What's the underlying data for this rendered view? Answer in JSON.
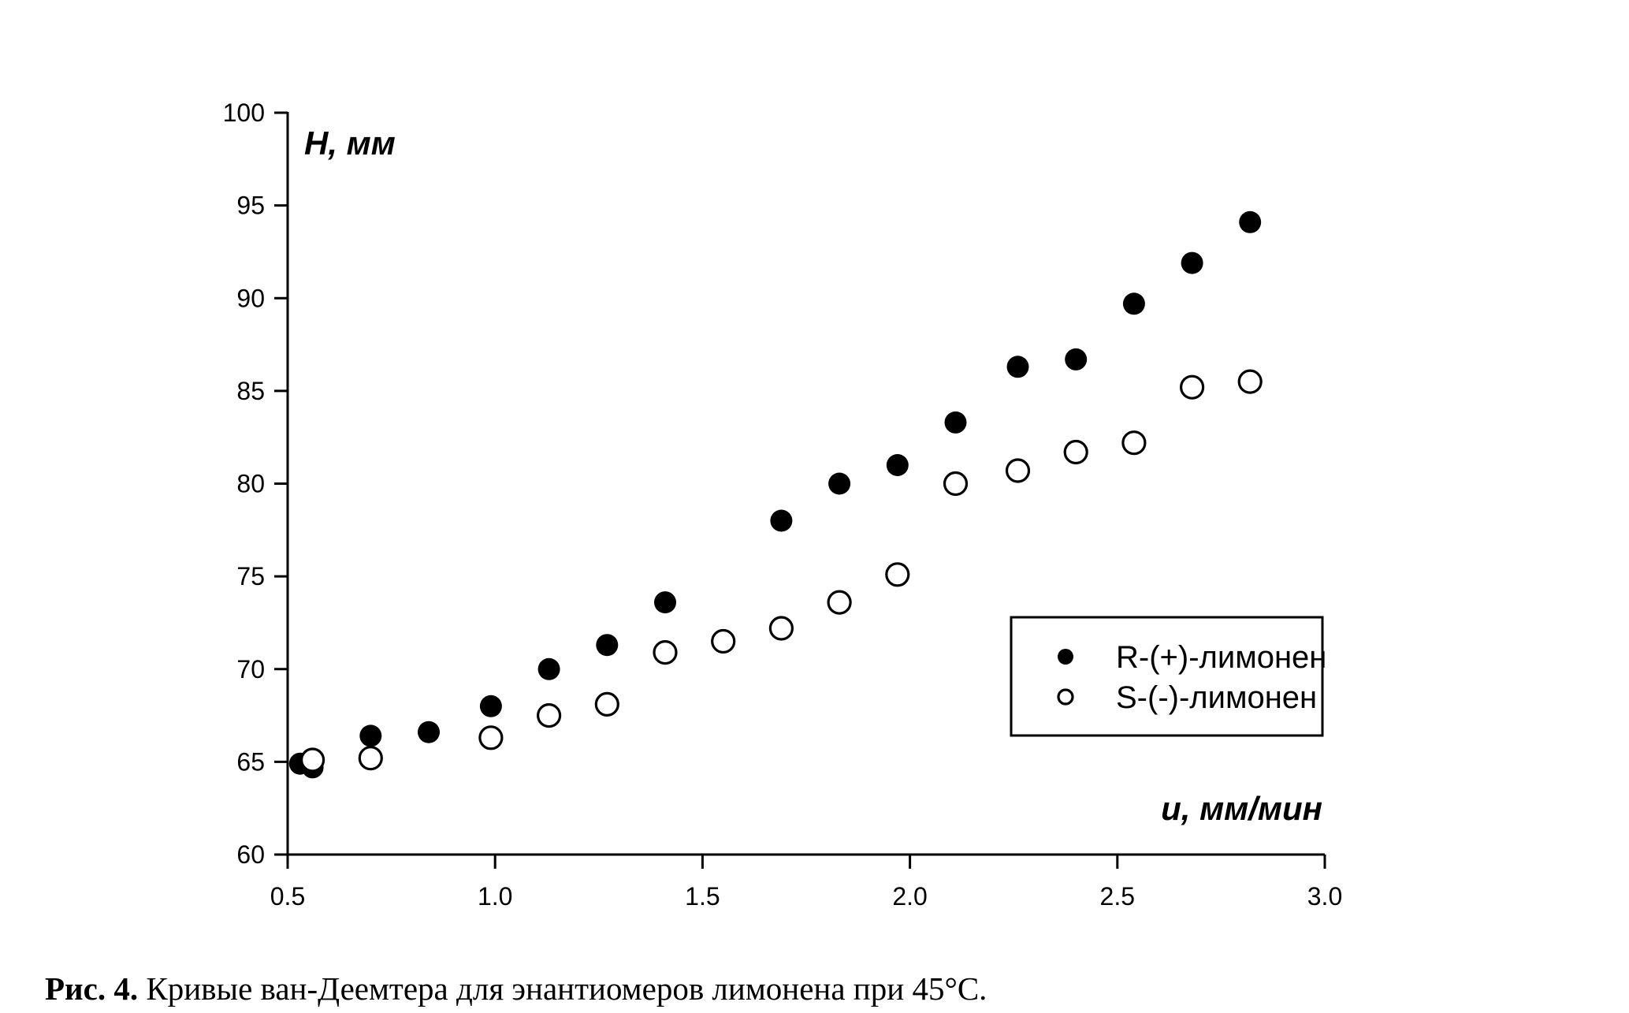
{
  "figure": {
    "background": "#ffffff",
    "foreground": "#000000",
    "y_axis_title": "Н, мм",
    "x_axis_title": "u, мм/мин",
    "caption_label": "Рис. 4.",
    "caption_text": " Кривые ван-Деемтера для энантиомеров лимонена при 45°С."
  },
  "chart_data": {
    "type": "scatter",
    "title": "",
    "xlabel": "u, мм/мин",
    "ylabel": "Н, мм",
    "xlim": [
      0.5,
      3.0
    ],
    "ylim": [
      60,
      100
    ],
    "x_ticks": [
      0.5,
      1.0,
      1.5,
      2.0,
      2.5,
      3.0
    ],
    "y_ticks": [
      60,
      65,
      70,
      75,
      80,
      85,
      90,
      95,
      100
    ],
    "grid": false,
    "legend_position": "inset lower right box",
    "series": [
      {
        "name": "R-(+)-лимонен",
        "marker": "filled-circle",
        "color": "#000000",
        "points": [
          [
            0.53,
            64.9
          ],
          [
            0.56,
            64.7
          ],
          [
            0.7,
            66.4
          ],
          [
            0.84,
            66.6
          ],
          [
            0.99,
            68.0
          ],
          [
            1.13,
            70.0
          ],
          [
            1.27,
            71.3
          ],
          [
            1.41,
            73.6
          ],
          [
            1.69,
            78.0
          ],
          [
            1.83,
            80.0
          ],
          [
            1.97,
            81.0
          ],
          [
            2.11,
            83.3
          ],
          [
            2.26,
            86.3
          ],
          [
            2.4,
            86.7
          ],
          [
            2.54,
            89.7
          ],
          [
            2.68,
            91.9
          ],
          [
            2.82,
            94.1
          ]
        ]
      },
      {
        "name": "S-(-)-лимонен",
        "marker": "open-circle",
        "color": "#000000",
        "points": [
          [
            0.56,
            65.1
          ],
          [
            0.7,
            65.2
          ],
          [
            0.99,
            66.3
          ],
          [
            1.13,
            67.5
          ],
          [
            1.27,
            68.1
          ],
          [
            1.41,
            70.9
          ],
          [
            1.55,
            71.5
          ],
          [
            1.69,
            72.2
          ],
          [
            1.83,
            73.6
          ],
          [
            1.97,
            75.1
          ],
          [
            2.11,
            80.0
          ],
          [
            2.26,
            80.7
          ],
          [
            2.4,
            81.7
          ],
          [
            2.54,
            82.2
          ],
          [
            2.68,
            85.2
          ],
          [
            2.82,
            85.5
          ]
        ]
      }
    ]
  }
}
